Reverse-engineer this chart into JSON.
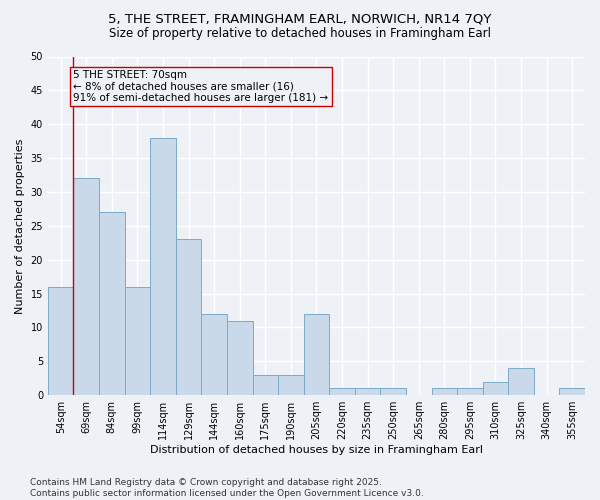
{
  "title1": "5, THE STREET, FRAMINGHAM EARL, NORWICH, NR14 7QY",
  "title2": "Size of property relative to detached houses in Framingham Earl",
  "xlabel": "Distribution of detached houses by size in Framingham Earl",
  "ylabel": "Number of detached properties",
  "categories": [
    "54sqm",
    "69sqm",
    "84sqm",
    "99sqm",
    "114sqm",
    "129sqm",
    "144sqm",
    "160sqm",
    "175sqm",
    "190sqm",
    "205sqm",
    "220sqm",
    "235sqm",
    "250sqm",
    "265sqm",
    "280sqm",
    "295sqm",
    "310sqm",
    "325sqm",
    "340sqm",
    "355sqm"
  ],
  "values": [
    16,
    32,
    27,
    16,
    38,
    23,
    12,
    11,
    3,
    3,
    12,
    1,
    1,
    1,
    0,
    1,
    1,
    2,
    4,
    0,
    1
  ],
  "bar_color": "#c9d9ea",
  "bar_edge_color": "#7aaac8",
  "ylim": [
    0,
    50
  ],
  "yticks": [
    0,
    5,
    10,
    15,
    20,
    25,
    30,
    35,
    40,
    45,
    50
  ],
  "annotation_line1": "5 THE STREET: 70sqm",
  "annotation_line2": "← 8% of detached houses are smaller (16)",
  "annotation_line3": "91% of semi-detached houses are larger (181) →",
  "vline_x": 0.5,
  "vline_color": "#cc0000",
  "box_edge_color": "#cc0000",
  "background_color": "#eef2f7",
  "grid_color": "#ffffff",
  "footer1": "Contains HM Land Registry data © Crown copyright and database right 2025.",
  "footer2": "Contains public sector information licensed under the Open Government Licence v3.0.",
  "title_fontsize": 9.5,
  "subtitle_fontsize": 8.5,
  "annotation_fontsize": 7.5,
  "ylabel_fontsize": 8,
  "xlabel_fontsize": 8,
  "tick_fontsize": 7,
  "footer_fontsize": 6.5
}
